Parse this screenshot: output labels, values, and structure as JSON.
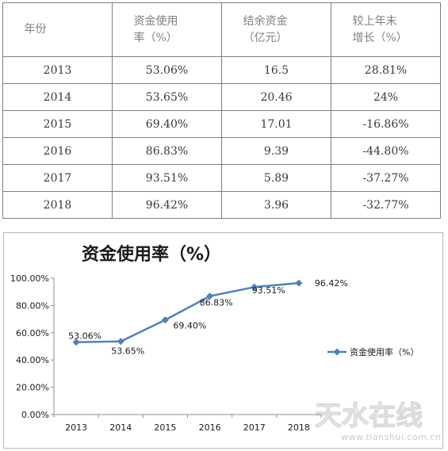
{
  "table": {
    "headers": [
      {
        "line1": "年份",
        "line2": ""
      },
      {
        "line1": "资金使用",
        "line2": "率（%）"
      },
      {
        "line1": "结余资金",
        "line2": "（亿元）"
      },
      {
        "line1": "较上年末",
        "line2": "增长（%）"
      }
    ],
    "rows": [
      {
        "year": "2013",
        "rate": "53.06%",
        "balance": "16.5",
        "growth": "28.81%"
      },
      {
        "year": "2014",
        "rate": "53.65%",
        "balance": "20.46",
        "growth": "24%"
      },
      {
        "year": "2015",
        "rate": "69.40%",
        "balance": "17.01",
        "growth": "-16.86%"
      },
      {
        "year": "2016",
        "rate": "86.83%",
        "balance": "9.39",
        "growth": "-44.80%"
      },
      {
        "year": "2017",
        "rate": "93.51%",
        "balance": "5.89",
        "growth": "-37.27%"
      },
      {
        "year": "2018",
        "rate": "96.42%",
        "balance": "3.96",
        "growth": "-32.77%"
      }
    ]
  },
  "chart_data": {
    "type": "line",
    "title": "资金使用率（%）",
    "categories": [
      "2013",
      "2014",
      "2015",
      "2016",
      "2017",
      "2018"
    ],
    "series": [
      {
        "name": "资金使用率（%）",
        "values": [
          53.06,
          53.65,
          69.4,
          86.83,
          93.51,
          96.42
        ],
        "data_labels": [
          "53.06%",
          "53.65%",
          "69.40%",
          "86.83%",
          "93.51%",
          "96.42%"
        ],
        "color": "#4f81bd",
        "marker": "diamond"
      }
    ],
    "ylim": [
      0,
      100
    ],
    "yticks": [
      0,
      20,
      40,
      60,
      80,
      100
    ],
    "ytick_labels": [
      "0.00%",
      "20.00%",
      "40.00%",
      "60.00%",
      "80.00%",
      "100.00%"
    ],
    "grid": false,
    "legend_position": "right"
  },
  "watermark": {
    "logo_text": "天水在线",
    "url": "www.tianshui.com.cn",
    "color": "#c9c9c9"
  }
}
